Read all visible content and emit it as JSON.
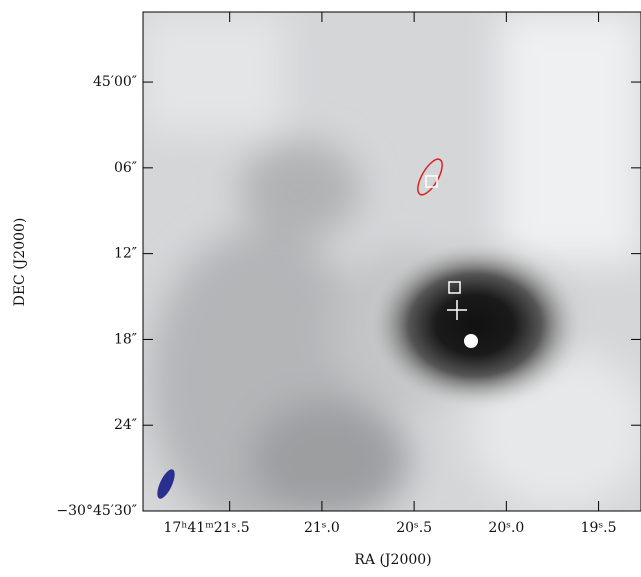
{
  "chart_data": {
    "type": "image",
    "xlabel": "RA (J2000)",
    "ylabel": "DEC (J2000)",
    "xlim": [
      21.97,
      19.27
    ],
    "xticks": [
      {
        "value": 21.5,
        "label": "17ʰ41ᵐ21ˢ.5"
      },
      {
        "value": 21.0,
        "label": "21ˢ.0"
      },
      {
        "value": 20.5,
        "label": "20ˢ.5"
      },
      {
        "value": 20.0,
        "label": "20ˢ.0"
      },
      {
        "value": 19.5,
        "label": "19ˢ.5"
      }
    ],
    "ylim": [
      -4.9,
      30
    ],
    "yticks": [
      {
        "value": 0,
        "label": "45′00″"
      },
      {
        "value": 6,
        "label": "06″"
      },
      {
        "value": 12,
        "label": "12″"
      },
      {
        "value": 18,
        "label": "18″"
      },
      {
        "value": 24,
        "label": "24″"
      },
      {
        "value": 30,
        "label": "−30°45′30″"
      }
    ]
  }
}
